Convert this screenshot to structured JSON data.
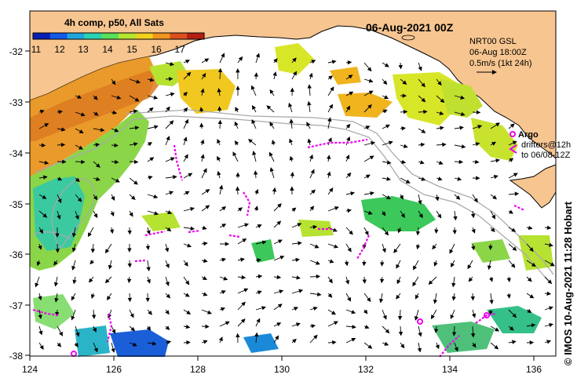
{
  "header": {
    "composite": "4h comp, p50, All Sats",
    "date": "06-Aug-2021 00Z"
  },
  "colorbar": {
    "ticks": [
      "11",
      "12",
      "13",
      "14",
      "15",
      "16",
      "17"
    ],
    "colors": [
      "#0a1fb4",
      "#1259e6",
      "#1ea5dc",
      "#2ad2b4",
      "#5ae05a",
      "#b4e632",
      "#f0d21e",
      "#f0961e",
      "#dc501e",
      "#b41e14"
    ]
  },
  "legend": {
    "gsl_title": "NRT00 GSL",
    "gsl_time": "06-Aug 18:00Z",
    "gsl_scale": "0.5m/s (1kt 24h)",
    "argo_label": "Argo",
    "drifters_label": "drifters@12h",
    "drifters_to": "to 06/08-12Z"
  },
  "axes": {
    "x_ticks": [
      "124",
      "126",
      "128",
      "130",
      "132",
      "134",
      "136"
    ],
    "y_ticks": [
      "-32",
      "-33",
      "-34",
      "-35",
      "-36",
      "-37",
      "-38"
    ],
    "lon_range": [
      124,
      136.5
    ],
    "lat_range": [
      -38.1,
      -31.4
    ]
  },
  "credit": "© IMOS 10-Aug-2021 11:28 Hobart",
  "colors": {
    "land": "#f7c590",
    "drifter": "#ee00ee",
    "contour": "#aaaaaa"
  }
}
